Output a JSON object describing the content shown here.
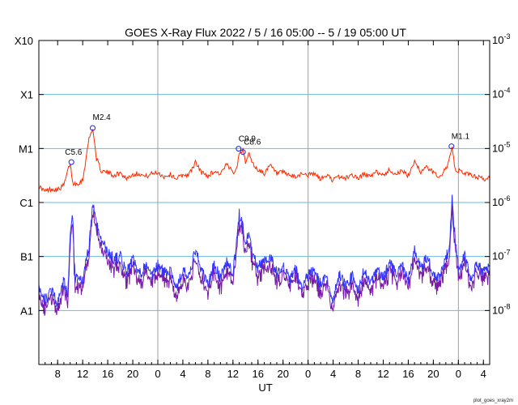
{
  "chart_data": {
    "type": "line",
    "title": "GOES X-Ray Flux   2022  /  5  /  16    05:00 --  5  /  19   05:00    UT",
    "xlabel": "UT",
    "footer": "plot_goes_xray2m",
    "x_range_hours": [
      0,
      72
    ],
    "x_start_hour_of_day": 5,
    "x_tick_labels": [
      "8",
      "12",
      "16",
      "20",
      "0",
      "4",
      "8",
      "12",
      "16",
      "20",
      "0",
      "4",
      "8",
      "12",
      "16",
      "20",
      "0",
      "4"
    ],
    "day_boundaries": [
      19,
      43,
      67
    ],
    "y_scale": "log",
    "y_range_wm2": [
      1e-09,
      0.001
    ],
    "y_left_labels": [
      "X10",
      "X1",
      "M1",
      "C1",
      "B1",
      "A1"
    ],
    "y_right_labels": [
      "10^-3",
      "10^-4",
      "10^-5",
      "10^-6",
      "10^-7",
      "10^-8"
    ],
    "grid": "horizontal at each decade, vertical at day boundaries",
    "colors": {
      "long": "#ff2a00",
      "short_blue": "#3333ff",
      "short_purple": "#7a1aa8",
      "grid_h": "#6bb8e6",
      "grid_v": "#a0a0a0",
      "marker": "#1a1aff"
    },
    "series": [
      {
        "name": "long",
        "points": [
          [
            0,
            2e-06
          ],
          [
            1,
            1.6e-06
          ],
          [
            2,
            1.8e-06
          ],
          [
            3,
            1.7e-06
          ],
          [
            4,
            2.1e-06
          ],
          [
            5,
            5.5e-06
          ],
          [
            5.4,
            2.3e-06
          ],
          [
            6,
            2.2e-06
          ],
          [
            7,
            2.6e-06
          ],
          [
            8,
            1.5e-05
          ],
          [
            8.6,
            2.4e-05
          ],
          [
            9.2,
            6.5e-06
          ],
          [
            10,
            3.8e-06
          ],
          [
            11,
            3.6e-06
          ],
          [
            12,
            3.2e-06
          ],
          [
            13,
            3.5e-06
          ],
          [
            14,
            2.8e-06
          ],
          [
            15,
            3.3e-06
          ],
          [
            16,
            3.5e-06
          ],
          [
            17,
            3e-06
          ],
          [
            18,
            3.4e-06
          ],
          [
            19,
            3.6e-06
          ],
          [
            20,
            3e-06
          ],
          [
            21,
            3.3e-06
          ],
          [
            22,
            2.8e-06
          ],
          [
            23,
            3.2e-06
          ],
          [
            24,
            3.3e-06
          ],
          [
            25,
            5.5e-06
          ],
          [
            26,
            3.6e-06
          ],
          [
            27,
            3.1e-06
          ],
          [
            28,
            3.8e-06
          ],
          [
            29,
            3.4e-06
          ],
          [
            30,
            5e-06
          ],
          [
            31,
            3.6e-06
          ],
          [
            31.6,
            4.5e-06
          ],
          [
            32,
            8e-06
          ],
          [
            32.6,
            1e-05
          ],
          [
            33,
            5e-06
          ],
          [
            33.6,
            8.9e-06
          ],
          [
            34,
            5.5e-06
          ],
          [
            35,
            4e-06
          ],
          [
            36,
            3.5e-06
          ],
          [
            37,
            4.8e-06
          ],
          [
            38,
            3.4e-06
          ],
          [
            39,
            3.6e-06
          ],
          [
            40,
            3.2e-06
          ],
          [
            41,
            2.9e-06
          ],
          [
            42,
            3.5e-06
          ],
          [
            43,
            3.2e-06
          ],
          [
            44,
            3.4e-06
          ],
          [
            45,
            2.7e-06
          ],
          [
            46,
            3.2e-06
          ],
          [
            47,
            2.6e-06
          ],
          [
            48,
            3e-06
          ],
          [
            49,
            2.8e-06
          ],
          [
            50,
            3.3e-06
          ],
          [
            51,
            2.8e-06
          ],
          [
            52,
            3.4e-06
          ],
          [
            53,
            3e-06
          ],
          [
            54,
            3.7e-06
          ],
          [
            55,
            3.2e-06
          ],
          [
            56,
            4e-06
          ],
          [
            57,
            3.4e-06
          ],
          [
            58,
            3.8e-06
          ],
          [
            59,
            3.1e-06
          ],
          [
            60,
            6e-06
          ],
          [
            61,
            3.7e-06
          ],
          [
            62,
            4.5e-06
          ],
          [
            63,
            3.6e-06
          ],
          [
            64,
            3e-06
          ],
          [
            65,
            4.2e-06
          ],
          [
            65.6,
            6.5e-06
          ],
          [
            66,
            1.05e-05
          ],
          [
            66.5,
            3.8e-06
          ],
          [
            67,
            3.9e-06
          ],
          [
            68,
            3.5e-06
          ],
          [
            69,
            3.2e-06
          ],
          [
            70,
            3e-06
          ],
          [
            71,
            2.7e-06
          ],
          [
            72,
            2.8e-06
          ]
        ]
      },
      {
        "name": "short",
        "points": [
          [
            0,
            3e-08
          ],
          [
            1,
            1.5e-08
          ],
          [
            2,
            2.5e-08
          ],
          [
            3,
            1.3e-08
          ],
          [
            4,
            3.5e-08
          ],
          [
            4.6,
            1.8e-08
          ],
          [
            5,
            2e-07
          ],
          [
            5.4,
            6e-07
          ],
          [
            5.8,
            3e-08
          ],
          [
            6,
            4e-08
          ],
          [
            7,
            3.5e-08
          ],
          [
            8,
            1.5e-07
          ],
          [
            8.6,
            1e-06
          ],
          [
            9.2,
            4e-07
          ],
          [
            10,
            2e-07
          ],
          [
            11,
            1.2e-07
          ],
          [
            12,
            9e-08
          ],
          [
            13,
            1e-07
          ],
          [
            14,
            5e-08
          ],
          [
            15,
            9e-08
          ],
          [
            16,
            4.5e-08
          ],
          [
            17,
            7e-08
          ],
          [
            18,
            4e-08
          ],
          [
            19,
            7e-08
          ],
          [
            20,
            5e-08
          ],
          [
            21,
            6e-08
          ],
          [
            22,
            2.5e-08
          ],
          [
            23,
            5.5e-08
          ],
          [
            24,
            4e-08
          ],
          [
            25,
            1.3e-07
          ],
          [
            26,
            5.5e-08
          ],
          [
            27,
            3e-08
          ],
          [
            28,
            7e-08
          ],
          [
            29,
            4e-08
          ],
          [
            30,
            8e-08
          ],
          [
            31,
            5e-08
          ],
          [
            31.5,
            1.5e-07
          ],
          [
            32,
            6e-07
          ],
          [
            32.6,
            3.5e-07
          ],
          [
            33,
            2e-07
          ],
          [
            33.6,
            2.8e-07
          ],
          [
            34,
            1.2e-07
          ],
          [
            35,
            6e-08
          ],
          [
            36,
            9e-08
          ],
          [
            37,
            1e-07
          ],
          [
            38,
            5e-08
          ],
          [
            39,
            7e-08
          ],
          [
            40,
            3.5e-08
          ],
          [
            41,
            6e-08
          ],
          [
            42,
            2.5e-08
          ],
          [
            43,
            4.5e-08
          ],
          [
            44,
            5.5e-08
          ],
          [
            45,
            3e-08
          ],
          [
            46,
            4e-08
          ],
          [
            47,
            1.5e-08
          ],
          [
            48,
            5e-08
          ],
          [
            49,
            2.8e-08
          ],
          [
            50,
            4.5e-08
          ],
          [
            51,
            2.2e-08
          ],
          [
            52,
            6e-08
          ],
          [
            53,
            3e-08
          ],
          [
            54,
            5.5e-08
          ],
          [
            55,
            4e-08
          ],
          [
            56,
            8e-08
          ],
          [
            57,
            4.5e-08
          ],
          [
            58,
            7e-08
          ],
          [
            59,
            3.5e-08
          ],
          [
            60,
            1.3e-07
          ],
          [
            61,
            6e-08
          ],
          [
            62,
            1e-07
          ],
          [
            63,
            4.5e-08
          ],
          [
            64,
            4e-08
          ],
          [
            65,
            9e-08
          ],
          [
            65.6,
            1.5e-07
          ],
          [
            66,
            1.2e-06
          ],
          [
            66.5,
            2e-07
          ],
          [
            67,
            6e-08
          ],
          [
            68,
            1e-07
          ],
          [
            69,
            4e-08
          ],
          [
            70,
            7e-08
          ],
          [
            71,
            5e-08
          ],
          [
            72,
            7e-08
          ]
        ]
      }
    ],
    "flare_labels": [
      {
        "label": "C5.6",
        "t": 5.2,
        "flux": 5.6e-06
      },
      {
        "label": "M2.4",
        "t": 8.6,
        "flux": 2.4e-05
      },
      {
        "label": "C9.9",
        "t": 31.9,
        "flux": 9.9e-06
      },
      {
        "label": "C8.6",
        "t": 32.6,
        "flux": 8.6e-06
      },
      {
        "label": "M1.1",
        "t": 65.9,
        "flux": 1.1e-05
      }
    ]
  }
}
